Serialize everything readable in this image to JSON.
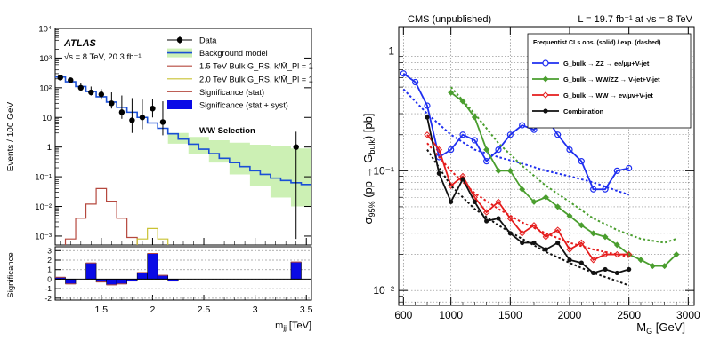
{
  "chart_data": [
    {
      "type": "histogram",
      "experiment_label": "ATLAS",
      "energy_label": "√s = 8 TeV, 20.3 fb⁻¹",
      "selection_label": "WW Selection",
      "xlabel": "m_jj [TeV]",
      "xlim": [
        1.05,
        3.55
      ],
      "xticks": [
        "1.5",
        "2",
        "2.5",
        "3",
        "3.5"
      ],
      "xtick_values": [
        1.5,
        2,
        2.5,
        3,
        3.5
      ],
      "top_panel": {
        "ylabel": "Events / 100 GeV",
        "yscale": "log",
        "ylim": [
          0.0005,
          10000
        ],
        "yticks": [
          "10⁻³",
          "10⁻²",
          "10⁻¹",
          "1",
          "10",
          "10²",
          "10³",
          "10⁴"
        ],
        "ytick_values": [
          0.001,
          0.01,
          0.1,
          1,
          10,
          100,
          1000,
          10000
        ],
        "legend": [
          {
            "label": "Data",
            "style": "data"
          },
          {
            "label": "Background model",
            "style": "bkg"
          },
          {
            "label": "1.5 TeV Bulk G_RS, k/M̄_Pl = 1",
            "style": "sig15"
          },
          {
            "label": "2.0 TeV Bulk G_RS, k/M̄_Pl = 1",
            "style": "sig20"
          },
          {
            "label": "Significance (stat)",
            "style": "sigstat"
          },
          {
            "label": "Significance (stat + syst)",
            "style": "sigsyst"
          }
        ],
        "bin_edges": [
          1.05,
          1.15,
          1.25,
          1.35,
          1.45,
          1.55,
          1.65,
          1.75,
          1.85,
          1.95,
          2.05,
          2.15,
          2.25,
          2.35,
          2.45,
          2.55,
          2.65,
          2.75,
          2.85,
          2.95,
          3.05,
          3.15,
          3.25,
          3.35,
          3.45,
          3.55
        ],
        "background": [
          230,
          160,
          110,
          75,
          50,
          33,
          22,
          15,
          10,
          6.5,
          4.3,
          2.8,
          1.85,
          1.25,
          0.85,
          0.6,
          0.42,
          0.3,
          0.22,
          0.16,
          0.12,
          0.09,
          0.075,
          0.063,
          0.055
        ],
        "data_x": [
          1.1,
          1.2,
          1.3,
          1.4,
          1.5,
          1.6,
          1.7,
          1.8,
          1.9,
          2.0,
          2.1,
          3.4
        ],
        "data_y": [
          220,
          180,
          100,
          70,
          60,
          30,
          15,
          8,
          10,
          20,
          7,
          1
        ],
        "data_err_up": [
          250,
          190,
          140,
          110,
          90,
          70,
          55,
          45,
          40,
          42,
          35,
          3.3
        ],
        "data_err_down": [
          190,
          145,
          80,
          55,
          40,
          20,
          9,
          3,
          4,
          10,
          2.5,
          0.0008
        ],
        "signal_1p5": {
          "x": [
            1.2,
            1.3,
            1.4,
            1.5,
            1.6,
            1.7,
            1.8
          ],
          "y": [
            0.0008,
            0.004,
            0.012,
            0.04,
            0.015,
            0.004,
            0.0009
          ]
        },
        "signal_2p0": {
          "x": [
            1.9,
            2.0,
            2.1
          ],
          "y": [
            0.0008,
            0.0018,
            0.0008
          ]
        },
        "uncertainty_band": {
          "x": [
            2.15,
            2.35,
            2.55,
            2.75,
            2.95,
            3.15,
            3.35,
            3.55
          ],
          "upper": [
            3,
            2.2,
            1.7,
            1.4,
            1.2,
            1.05,
            0.9,
            0.8
          ],
          "lower": [
            1.3,
            0.6,
            0.3,
            0.12,
            0.05,
            0.02,
            0.01,
            0.008
          ]
        }
      },
      "bottom_panel": {
        "ylabel": "Significance",
        "ylim": [
          -2.2,
          3.4
        ],
        "yticks": [
          "-2",
          "-1",
          "0",
          "1",
          "2",
          "3"
        ],
        "ytick_values": [
          -2,
          -1,
          0,
          1,
          2,
          3
        ],
        "significance": [
          0.2,
          -0.5,
          0,
          1.7,
          -0.3,
          -0.6,
          -0.5,
          -0.2,
          0.7,
          2.7,
          0.4,
          -0.2,
          0,
          0,
          0,
          0,
          0,
          0,
          0,
          0,
          0,
          0,
          0,
          1.8,
          0
        ]
      }
    },
    {
      "type": "line",
      "header_left": "CMS (unpublished)",
      "header_right": "L = 19.7 fb⁻¹ at √s = 8 TeV",
      "xlabel": "M_G [GeV]",
      "ylabel": "σ95% (pp → G_bulk) [pb]",
      "xlim": [
        560,
        3050
      ],
      "xticks": [
        "600",
        "1000",
        "1500",
        "2000",
        "2500",
        "3000"
      ],
      "xtick_values": [
        600,
        1000,
        1500,
        2000,
        2500,
        3000
      ],
      "yscale": "log",
      "ylim": [
        0.0075,
        1.6
      ],
      "yticks": [
        "10⁻²",
        "10⁻¹",
        "1"
      ],
      "ytick_values": [
        0.01,
        0.1,
        1
      ],
      "legend_title": "Frequentist CLs obs. (solid) / exp. (dashed)",
      "series": [
        {
          "name": "G_bulk → ZZ → ee/μμ+V-jet",
          "color": "#1f2ff0",
          "observed": {
            "x": [
              600,
              700,
              800,
              900,
              1000,
              1100,
              1200,
              1300,
              1400,
              1500,
              1600,
              1700,
              1800,
              1900,
              2000,
              2100,
              2200,
              2300,
              2400,
              2500
            ],
            "y": [
              0.65,
              0.55,
              0.35,
              0.13,
              0.15,
              0.2,
              0.18,
              0.12,
              0.15,
              0.2,
              0.24,
              0.22,
              0.28,
              0.2,
              0.15,
              0.12,
              0.07,
              0.07,
              0.1,
              0.105
            ]
          },
          "expected": {
            "x": [
              600,
              800,
              1000,
              1200,
              1400,
              1600,
              1800,
              2000,
              2200,
              2400,
              2500
            ],
            "y": [
              0.48,
              0.3,
              0.2,
              0.15,
              0.13,
              0.115,
              0.1,
              0.09,
              0.08,
              0.068,
              0.063
            ]
          }
        },
        {
          "name": "G_bulk → WW/ZZ → V-jet+V-jet",
          "color": "#4a9e2e",
          "observed": {
            "x": [
              1000,
              1100,
              1200,
              1300,
              1400,
              1500,
              1600,
              1700,
              1800,
              1900,
              2000,
              2100,
              2200,
              2300,
              2400,
              2500,
              2600,
              2700,
              2800,
              2900
            ],
            "y": [
              0.45,
              0.38,
              0.28,
              0.15,
              0.1,
              0.1,
              0.07,
              0.055,
              0.06,
              0.05,
              0.042,
              0.035,
              0.03,
              0.028,
              0.024,
              0.02,
              0.018,
              0.016,
              0.016,
              0.02
            ]
          },
          "expected": {
            "x": [
              1000,
              1200,
              1400,
              1600,
              1800,
              2000,
              2200,
              2400,
              2600,
              2800,
              2900
            ],
            "y": [
              0.5,
              0.3,
              0.17,
              0.11,
              0.075,
              0.055,
              0.04,
              0.032,
              0.027,
              0.025,
              0.027
            ]
          }
        },
        {
          "name": "G_bulk → WW → eν/μν+V-jet",
          "color": "#e51c1c",
          "observed": {
            "x": [
              800,
              900,
              1000,
              1100,
              1200,
              1300,
              1400,
              1500,
              1600,
              1700,
              1800,
              1900,
              2000,
              2100,
              2200,
              2300,
              2400,
              2500
            ],
            "y": [
              0.2,
              0.15,
              0.075,
              0.09,
              0.06,
              0.045,
              0.055,
              0.04,
              0.03,
              0.035,
              0.028,
              0.032,
              0.022,
              0.025,
              0.018,
              0.02,
              0.02,
              0.02
            ]
          },
          "expected": {
            "x": [
              800,
              1000,
              1200,
              1400,
              1600,
              1800,
              2000,
              2200,
              2400,
              2500
            ],
            "y": [
              0.17,
              0.1,
              0.065,
              0.048,
              0.037,
              0.03,
              0.025,
              0.022,
              0.02,
              0.019
            ]
          }
        },
        {
          "name": "Combination",
          "color": "#111111",
          "observed": {
            "x": [
              800,
              900,
              1000,
              1100,
              1200,
              1300,
              1400,
              1500,
              1600,
              1700,
              1800,
              1900,
              2000,
              2100,
              2200,
              2300,
              2400,
              2500
            ],
            "y": [
              0.28,
              0.095,
              0.055,
              0.085,
              0.055,
              0.038,
              0.04,
              0.03,
              0.025,
              0.025,
              0.022,
              0.025,
              0.018,
              0.017,
              0.014,
              0.015,
              0.014,
              0.015
            ]
          },
          "expected": {
            "x": [
              800,
              1000,
              1200,
              1400,
              1600,
              1800,
              2000,
              2200,
              2400,
              2500
            ],
            "y": [
              0.15,
              0.075,
              0.048,
              0.035,
              0.027,
              0.021,
              0.017,
              0.014,
              0.012,
              0.011
            ]
          }
        }
      ]
    }
  ]
}
